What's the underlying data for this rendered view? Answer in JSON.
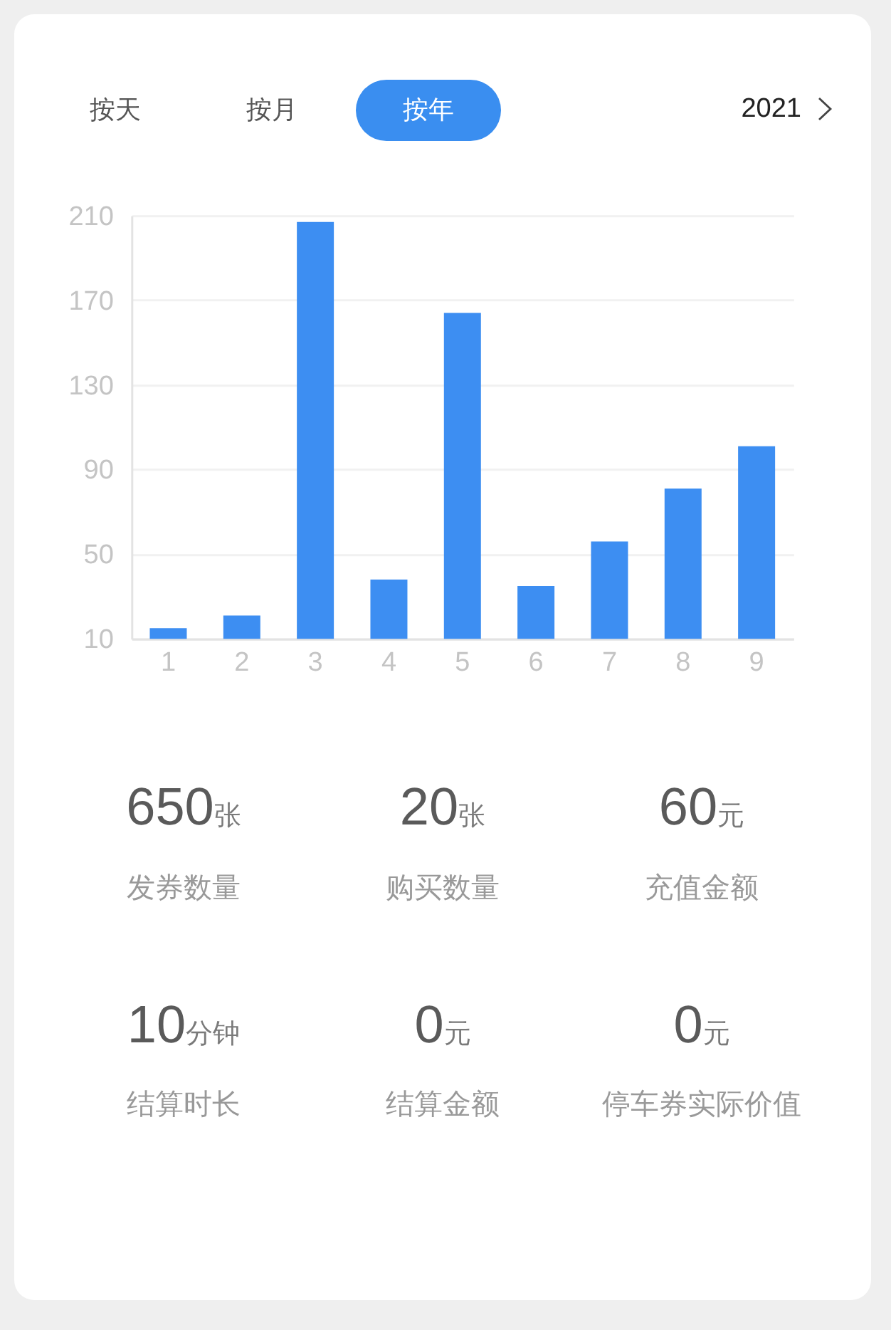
{
  "chart_data": [
    {
      "type": "bar",
      "categories": [
        "1",
        "2",
        "3",
        "4",
        "5",
        "6",
        "7",
        "8",
        "9"
      ],
      "values": [
        15,
        21,
        207,
        38,
        164,
        35,
        56,
        81,
        101
      ],
      "color": "#3d8ef2",
      "ylim": [
        10,
        210
      ],
      "yticks": [
        10,
        50,
        90,
        130,
        170,
        210
      ],
      "grid": "y",
      "annotations": [
        "按天",
        "按月",
        "按年",
        "2021"
      ]
    },
    {
      "type": "other",
      "categories": [
        "发券数量",
        "购买数量",
        "充值金额",
        "结算时长",
        "结算金额",
        "停车券实际价值"
      ],
      "values": [
        650,
        20,
        60,
        10,
        0,
        0
      ],
      "value_labels": [
        "650张",
        "20张",
        "60元",
        "10分钟",
        "0元",
        "0元"
      ]
    }
  ]
}
